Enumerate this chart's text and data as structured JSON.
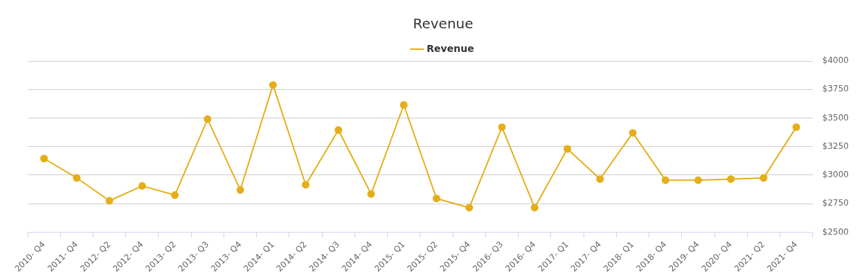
{
  "chart_data": {
    "type": "line",
    "title": "Revenue",
    "categories": [
      "2010- Q4",
      "2011- Q4",
      "2012- Q2",
      "2012- Q4",
      "2013- Q2",
      "2013- Q3",
      "2013- Q4",
      "2014- Q1",
      "2014- Q2",
      "2014- Q3",
      "2014- Q4",
      "2015- Q1",
      "2015- Q2",
      "2015- Q4",
      "2016- Q3",
      "2016- Q4",
      "2017- Q1",
      "2017- Q4",
      "2018- Q1",
      "2018- Q4",
      "2019- Q4",
      "2020- Q4",
      "2021- Q2",
      "2021- Q4"
    ],
    "series": [
      {
        "name": "Revenue",
        "color": "#e5ae1a",
        "values": [
          3145,
          2975,
          2775,
          2905,
          2825,
          3490,
          2870,
          3790,
          2915,
          3395,
          2835,
          3615,
          2795,
          2715,
          3420,
          2715,
          3230,
          2965,
          3370,
          2955,
          2955,
          2965,
          2975,
          3420
        ]
      }
    ],
    "ylim": [
      2500,
      4000
    ],
    "yticks": [
      {
        "value": 2500,
        "label": "$2500"
      },
      {
        "value": 2750,
        "label": "$2750"
      },
      {
        "value": 3000,
        "label": "$3000"
      },
      {
        "value": 3250,
        "label": "$3250"
      },
      {
        "value": 3500,
        "label": "$3500"
      },
      {
        "value": 3750,
        "label": "$3750"
      },
      {
        "value": 4000,
        "label": "$4000"
      }
    ],
    "grid": "y",
    "legend": "top",
    "marker": "circle",
    "line_style": "solid"
  }
}
